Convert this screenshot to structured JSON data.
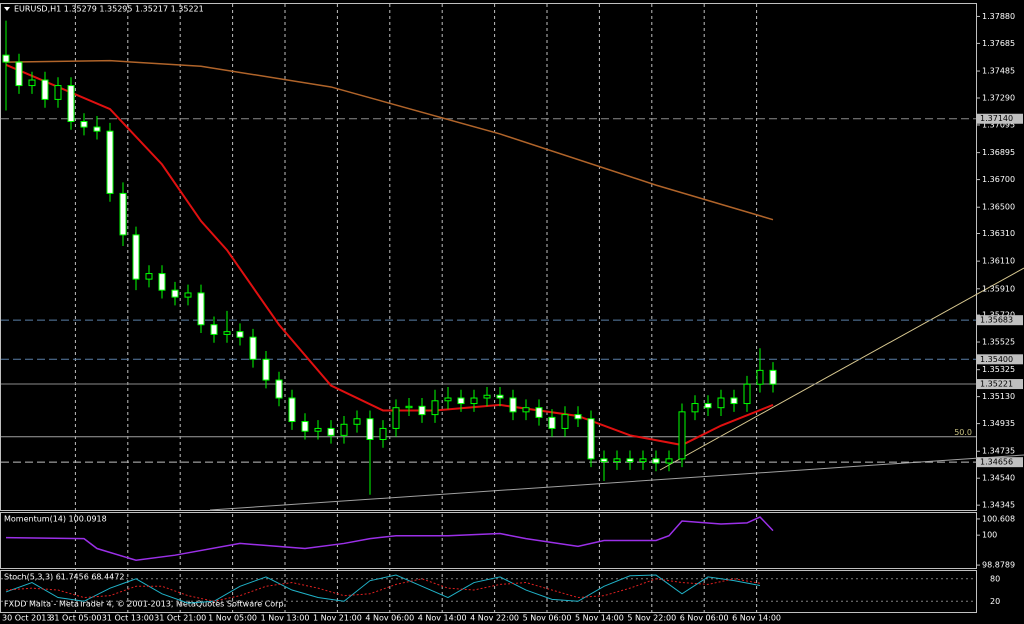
{
  "chart_data": {
    "type": "candlestick",
    "title": "EURUSD,H1  1.35279 1.35295 1.35217 1.35221",
    "open": [
      1.376,
      1.3755,
      1.3738,
      1.3742,
      1.3728,
      1.3738,
      1.3712,
      1.3708,
      1.3705,
      1.366,
      1.363,
      1.3598,
      1.3602,
      1.359,
      1.3585,
      1.3588,
      1.3565,
      1.3558,
      1.356,
      1.3556,
      1.354,
      1.3525,
      1.3512,
      1.3495,
      1.3488,
      1.349,
      1.3485,
      1.3493,
      1.3497,
      1.3482,
      1.349,
      1.3505,
      1.3506,
      1.35,
      1.351,
      1.3512,
      1.3508,
      1.3512,
      1.3514,
      1.3512,
      1.3502,
      1.3505,
      1.3498,
      1.349,
      1.35,
      1.3497,
      1.3468,
      1.3466,
      1.3468,
      1.3466,
      1.3468,
      1.3465,
      1.3468,
      1.3502,
      1.3508,
      1.3505,
      1.3512,
      1.3508,
      1.3522,
      1.3532
    ],
    "high": [
      1.3785,
      1.3761,
      1.3748,
      1.3748,
      1.3744,
      1.3744,
      1.3718,
      1.3716,
      1.3711,
      1.3668,
      1.3636,
      1.3608,
      1.3608,
      1.3596,
      1.3594,
      1.3594,
      1.3571,
      1.3575,
      1.3566,
      1.3562,
      1.3546,
      1.3531,
      1.3518,
      1.3501,
      1.3496,
      1.3496,
      1.3499,
      1.3503,
      1.3503,
      1.3496,
      1.3511,
      1.3512,
      1.3512,
      1.3518,
      1.352,
      1.3518,
      1.3518,
      1.352,
      1.352,
      1.3518,
      1.3511,
      1.3511,
      1.3504,
      1.3506,
      1.3506,
      1.3503,
      1.3474,
      1.3474,
      1.3474,
      1.3474,
      1.3474,
      1.3474,
      1.3508,
      1.3514,
      1.3514,
      1.3518,
      1.3518,
      1.3528,
      1.3548,
      1.3538
    ],
    "low": [
      1.372,
      1.3732,
      1.3732,
      1.3722,
      1.3722,
      1.3706,
      1.3702,
      1.3699,
      1.3654,
      1.3622,
      1.359,
      1.3592,
      1.3584,
      1.3579,
      1.3579,
      1.3559,
      1.3552,
      1.3552,
      1.355,
      1.3534,
      1.3519,
      1.3506,
      1.3489,
      1.3482,
      1.3482,
      1.3479,
      1.3479,
      1.3487,
      1.3442,
      1.3476,
      1.3484,
      1.3499,
      1.3494,
      1.3494,
      1.3504,
      1.3502,
      1.3502,
      1.3506,
      1.3506,
      1.3496,
      1.3496,
      1.3492,
      1.3484,
      1.3484,
      1.3491,
      1.3462,
      1.3452,
      1.346,
      1.346,
      1.346,
      1.3459,
      1.3459,
      1.3462,
      1.3496,
      1.3499,
      1.3499,
      1.3502,
      1.3502,
      1.3516,
      1.3516
    ],
    "close": [
      1.3755,
      1.3738,
      1.3742,
      1.3728,
      1.3738,
      1.3712,
      1.3708,
      1.3705,
      1.366,
      1.363,
      1.3598,
      1.3602,
      1.359,
      1.3585,
      1.3588,
      1.3565,
      1.3558,
      1.356,
      1.3556,
      1.354,
      1.3525,
      1.3512,
      1.3495,
      1.3488,
      1.349,
      1.3485,
      1.3493,
      1.3497,
      1.3482,
      1.349,
      1.3505,
      1.3506,
      1.35,
      1.351,
      1.3512,
      1.3508,
      1.3512,
      1.3514,
      1.3512,
      1.3502,
      1.3505,
      1.3498,
      1.349,
      1.35,
      1.3497,
      1.3468,
      1.3466,
      1.3468,
      1.3466,
      1.3468,
      1.3465,
      1.3468,
      1.3502,
      1.3508,
      1.3505,
      1.3512,
      1.3508,
      1.3522,
      1.3532,
      1.3522
    ],
    "ma": [
      {
        "color": "#e01010",
        "x": [
          0,
          8,
          12,
          15,
          17,
          21,
          25,
          29,
          33,
          38,
          44,
          48,
          52,
          55,
          59
        ],
        "values": [
          1.3753,
          1.3721,
          1.3681,
          1.364,
          1.3619,
          1.3565,
          1.3521,
          1.3503,
          1.3503,
          1.3507,
          1.3499,
          1.3485,
          1.3478,
          1.3492,
          1.3507
        ]
      },
      {
        "color": "#b0642a",
        "x": [
          0,
          8,
          15,
          25,
          38,
          50,
          59
        ],
        "values": [
          1.3755,
          1.3756,
          1.3752,
          1.3737,
          1.3703,
          1.3666,
          1.3641
        ]
      }
    ],
    "ylim": [
      1.3431,
      1.3797
    ],
    "yticks": [
      {
        "value": 1.3788,
        "label": "1.37880"
      },
      1.37685,
      1.37485,
      {
        "value": 1.3729,
        "label": "1.37290"
      },
      1.37095,
      1.36895,
      {
        "value": 1.367,
        "label": "1.36700"
      },
      {
        "value": 1.365,
        "label": "1.36500"
      },
      {
        "value": 1.3631,
        "label": "1.36310"
      },
      {
        "value": 1.3611,
        "label": "1.36110"
      },
      {
        "value": 1.3591,
        "label": "1.35910"
      },
      {
        "value": 1.3572,
        "label": "1.35720"
      },
      1.35525,
      1.35325,
      {
        "value": 1.3513,
        "label": "1.35130"
      },
      1.34935,
      1.34735,
      {
        "value": 1.3454,
        "label": "1.34540"
      },
      1.34345
    ],
    "levels": [
      {
        "value": 1.3714,
        "label": "1.37140",
        "style": "dashed",
        "color": "#8c8c8c"
      },
      {
        "value": 1.35683,
        "label": "1.35683",
        "style": "dashed",
        "color": "#5a7fa8"
      },
      {
        "value": 1.354,
        "label": "1.35400",
        "style": "dashed",
        "color": "#5a7fa8"
      },
      {
        "value": 1.35221,
        "label": "1.35221",
        "style": "solid",
        "color": "#8c8c8c"
      },
      {
        "value": 1.34656,
        "label": "1.34656",
        "style": "dashed",
        "color": "#c0c0c0"
      }
    ],
    "fibo": {
      "label": "50.0",
      "value": 1.3484
    },
    "grid": "vertical",
    "x_labels": [
      "30 Oct 2013",
      "31 Oct 05:00",
      "31 Oct 13:00",
      "31 Oct 21:00",
      "1 Nov 05:00",
      "1 Nov 13:00",
      "1 Nov 21:00",
      "4 Nov 06:00",
      "4 Nov 14:00",
      "4 Nov 22:00",
      "5 Nov 06:00",
      "5 Nov 14:00",
      "5 Nov 22:00",
      "6 Nov 06:00",
      "6 Nov 14:00"
    ],
    "momentum": {
      "name": "Momentum(14) 100.0918",
      "color": "#9b30e8",
      "x": [
        0,
        6,
        7,
        10,
        13,
        18,
        23,
        26,
        28,
        30,
        34,
        38,
        40,
        44,
        46,
        50,
        51,
        52,
        55,
        57,
        58,
        59
      ],
      "values": [
        99.91,
        99.87,
        99.5,
        99.06,
        99.25,
        99.69,
        99.5,
        99.69,
        99.87,
        99.98,
        99.98,
        100.06,
        99.87,
        99.58,
        99.8,
        99.8,
        99.98,
        100.53,
        100.42,
        100.46,
        100.68,
        100.17
      ],
      "ylim": [
        98.77,
        100.83
      ],
      "yticks": [
        100.608,
        100,
        98.8789
      ]
    },
    "stoch": {
      "name": "Stoch(5,3,3) 61.7456 68.4472",
      "ylim": [
        -8.6,
        100.8
      ],
      "yticks": [
        80,
        20
      ],
      "x": [
        0,
        2,
        4,
        6,
        8,
        10,
        12,
        14,
        16,
        18,
        20,
        22,
        24,
        26,
        28,
        30,
        32,
        34,
        36,
        38,
        40,
        42,
        44,
        46,
        48,
        50,
        52,
        54,
        56,
        58
      ],
      "series": [
        {
          "color": "#20b2c8",
          "values": [
            45,
            70,
            30,
            20,
            55,
            80,
            40,
            15,
            20,
            60,
            85,
            50,
            30,
            20,
            75,
            90,
            60,
            30,
            70,
            85,
            50,
            25,
            20,
            60,
            88,
            90,
            40,
            85,
            75,
            62
          ]
        },
        {
          "color": "#e02020",
          "values": [
            50,
            55,
            50,
            30,
            35,
            60,
            60,
            35,
            20,
            35,
            60,
            70,
            55,
            35,
            40,
            65,
            80,
            55,
            50,
            65,
            70,
            50,
            30,
            35,
            55,
            80,
            70,
            65,
            80,
            68
          ]
        }
      ]
    },
    "footer": "FXDD Malta - MetaTrader 4, © 2001-2013, MetaQuotes Software Corp."
  }
}
